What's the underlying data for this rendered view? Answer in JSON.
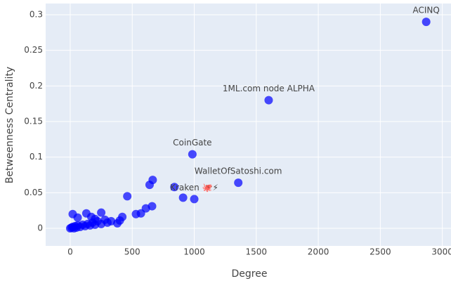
{
  "chart_data": {
    "type": "scatter",
    "xlabel": "Degree",
    "ylabel": "Betweenness Centrality",
    "color": "#0000ff",
    "grid": true,
    "xlim": [
      -198,
      3070
    ],
    "ylim": [
      -0.0247,
      0.3158
    ],
    "xticks": [
      0,
      500,
      1000,
      1500,
      2000,
      2500,
      3000
    ],
    "yticks": [
      0,
      0.05,
      0.1,
      0.15,
      0.2,
      0.25,
      0.3
    ],
    "x": [
      0,
      10,
      20,
      30,
      40,
      50,
      60,
      80,
      100,
      120,
      140,
      160,
      180,
      200,
      220,
      250,
      280,
      300,
      20,
      60,
      130,
      170,
      250,
      200,
      330,
      380,
      400,
      420,
      460,
      530,
      570,
      610,
      660,
      640,
      665,
      840,
      910,
      1000,
      985,
      1355,
      1600,
      2870
    ],
    "y": [
      0,
      0.001,
      0.002,
      0,
      0.003,
      0.001,
      0.004,
      0.002,
      0.005,
      0.003,
      0.006,
      0.004,
      0.008,
      0.005,
      0.01,
      0.006,
      0.012,
      0.008,
      0.02,
      0.015,
      0.021,
      0.016,
      0.022,
      0.013,
      0.01,
      0.007,
      0.011,
      0.016,
      0.045,
      0.02,
      0.021,
      0.028,
      0.031,
      0.061,
      0.068,
      0.058,
      0.043,
      0.041,
      0.104,
      0.064,
      0.18,
      0.29
    ],
    "point_labels": [
      null,
      null,
      null,
      null,
      null,
      null,
      null,
      null,
      null,
      null,
      null,
      null,
      null,
      null,
      null,
      null,
      null,
      null,
      null,
      null,
      null,
      null,
      null,
      null,
      null,
      null,
      null,
      null,
      null,
      null,
      null,
      null,
      null,
      null,
      null,
      null,
      null,
      "Kraken 🐙⚡",
      "CoinGate",
      "WalletOfSatoshi.com",
      "1ML.com node ALPHA",
      "ACINQ"
    ]
  }
}
